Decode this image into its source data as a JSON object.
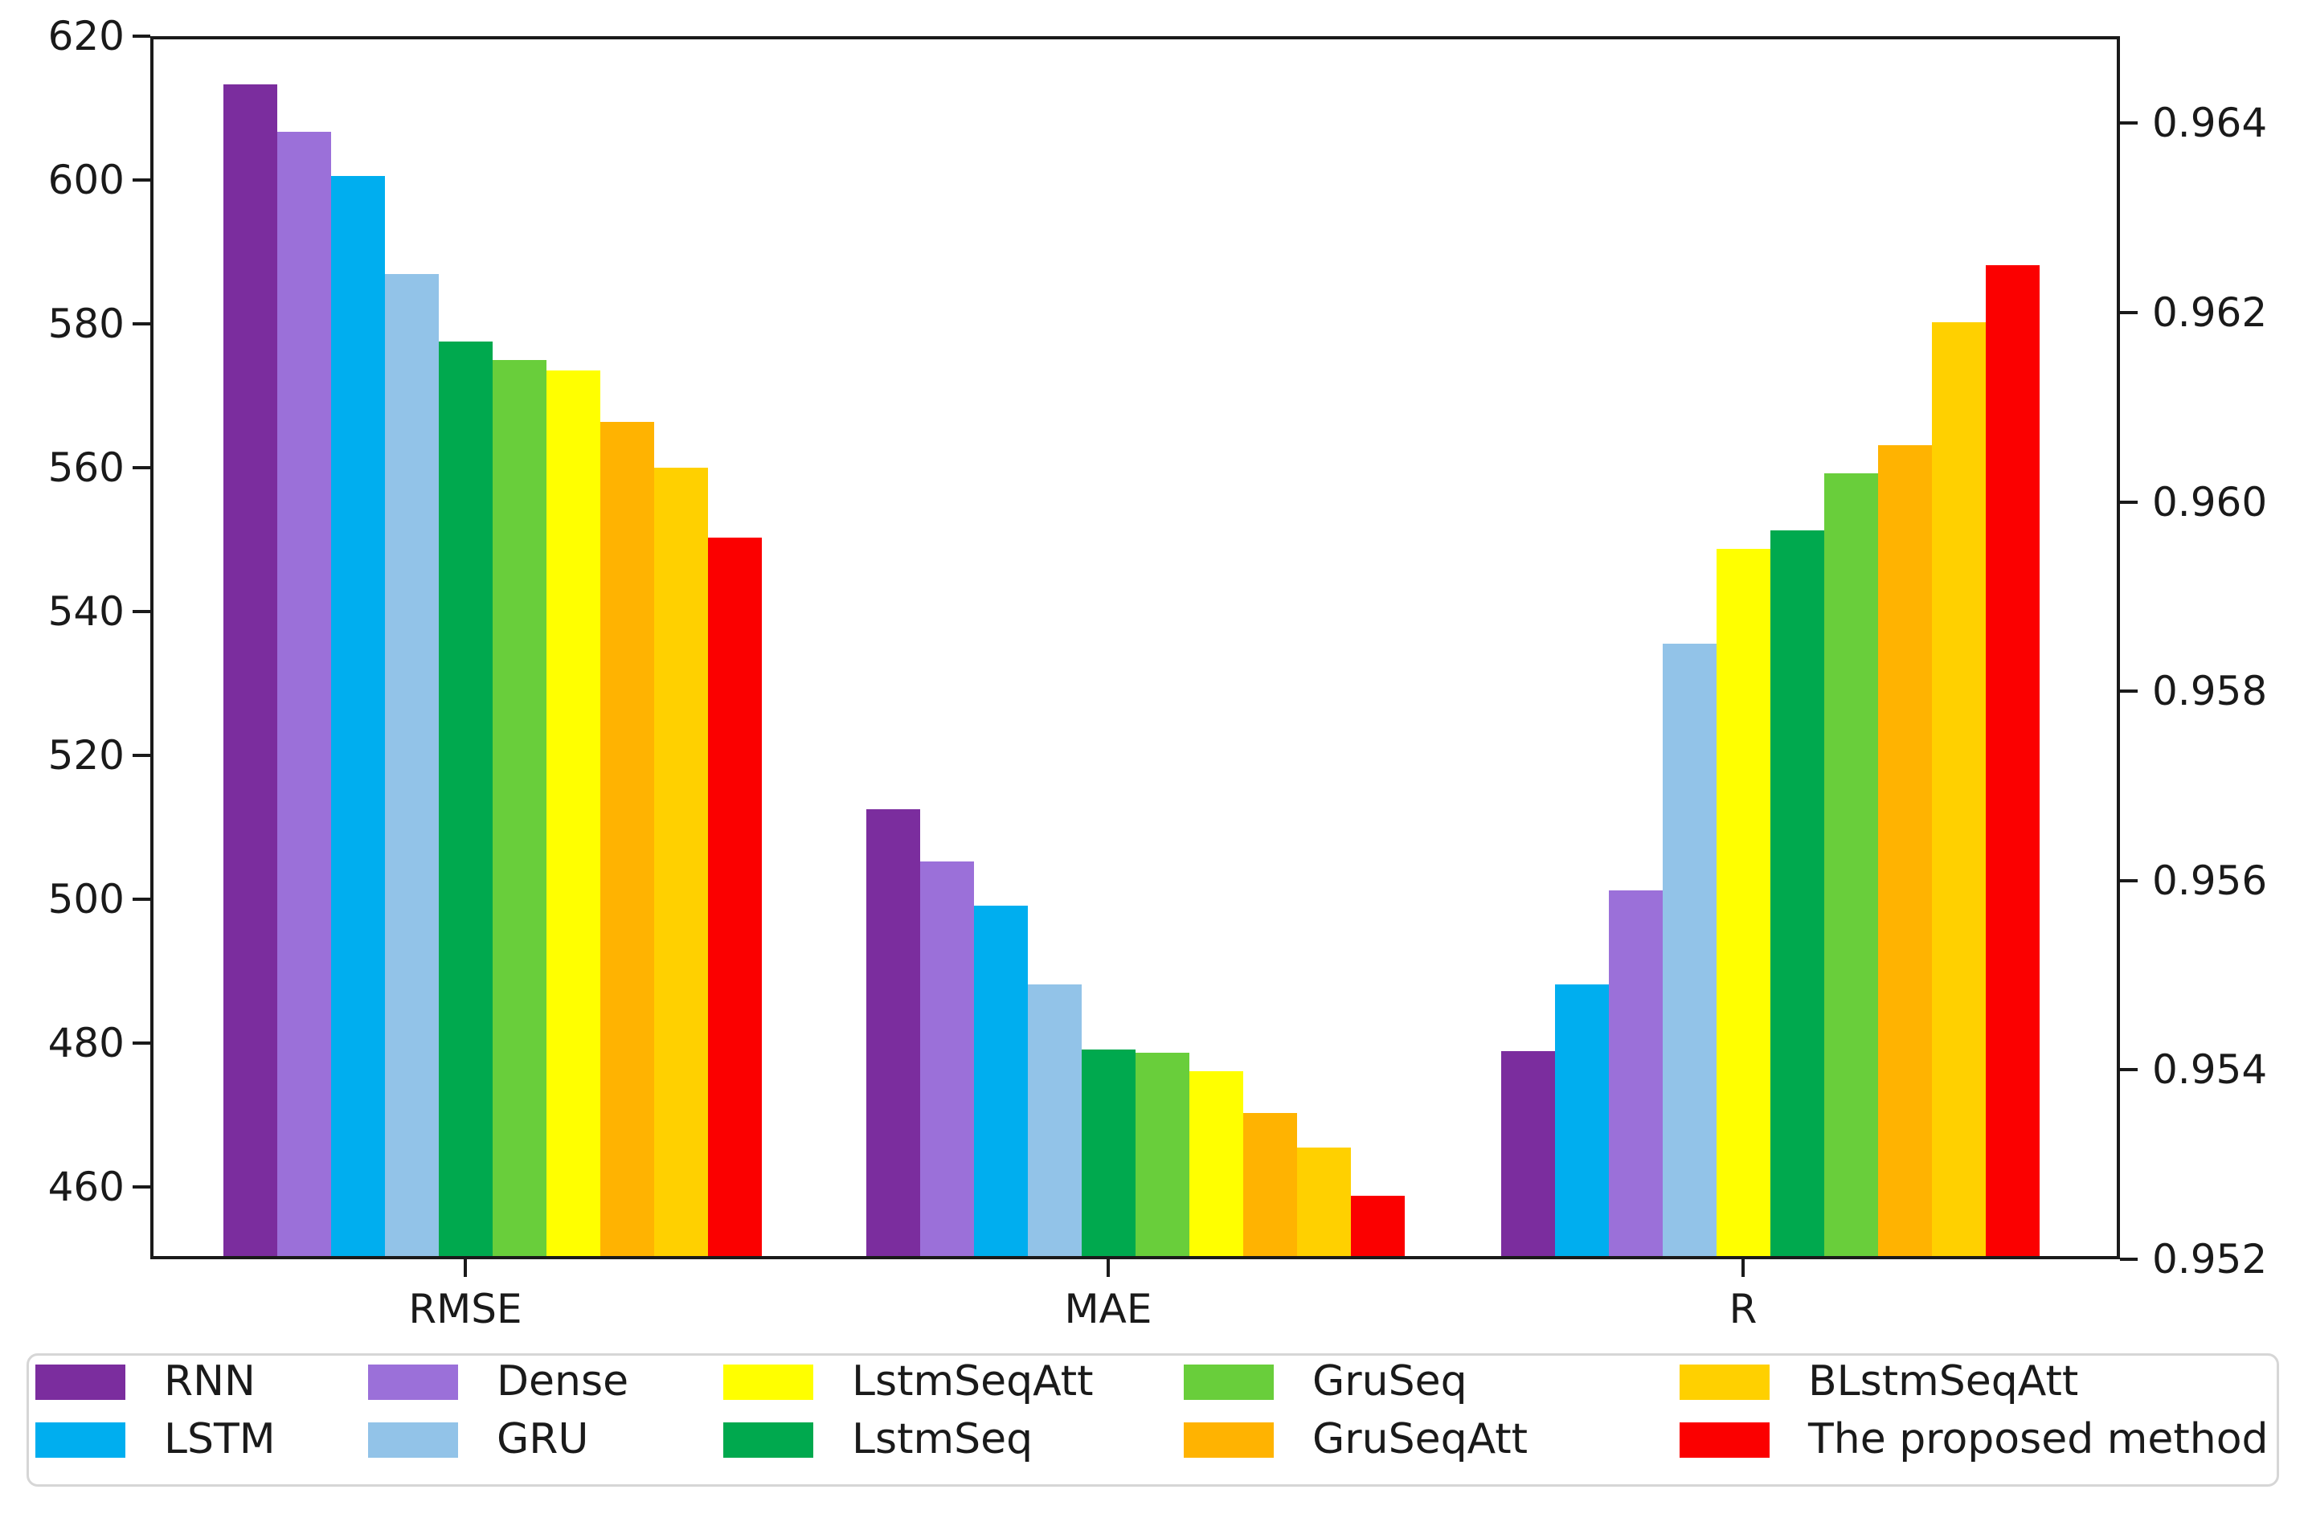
{
  "chart_data": {
    "type": "bar",
    "title": "",
    "xlabel": "",
    "ylabel_left": "",
    "ylabel_right": "",
    "grid": false,
    "legend_position": "bottom",
    "categories": [
      "RMSE",
      "MAE",
      "R"
    ],
    "left_axis": {
      "range": [
        450,
        620
      ],
      "ticks": [
        460,
        480,
        500,
        520,
        540,
        560,
        580,
        600,
        620
      ],
      "applies_to": [
        "RMSE",
        "MAE"
      ]
    },
    "right_axis": {
      "range": [
        0.952,
        0.96492
      ],
      "ticks": [
        0.952,
        0.954,
        0.956,
        0.958,
        0.96,
        0.962,
        0.964
      ],
      "applies_to": [
        "R"
      ]
    },
    "methods": [
      {
        "name": "RNN",
        "color": "#7B2D9E"
      },
      {
        "name": "LSTM",
        "color": "#00AEEF"
      },
      {
        "name": "Dense",
        "color": "#9B70D9"
      },
      {
        "name": "GRU",
        "color": "#92C3E8"
      },
      {
        "name": "LstmSeqAtt",
        "color": "#FFFF00"
      },
      {
        "name": "LstmSeq",
        "color": "#00A94E"
      },
      {
        "name": "GruSeq",
        "color": "#69CE3B"
      },
      {
        "name": "GruSeqAtt",
        "color": "#FFB301"
      },
      {
        "name": "BLstmSeqAtt",
        "color": "#FFD000"
      },
      {
        "name": "The proposed method",
        "color": "#FB0000"
      }
    ],
    "series": [
      {
        "name": "RNN",
        "values": {
          "RMSE": 613.3,
          "MAE": 512.6,
          "R": 0.9542
        }
      },
      {
        "name": "LSTM",
        "values": {
          "RMSE": 600.6,
          "MAE": 499.1,
          "R": 0.9549
        }
      },
      {
        "name": "Dense",
        "values": {
          "RMSE": 606.7,
          "MAE": 505.3,
          "R": 0.9559
        }
      },
      {
        "name": "GRU",
        "values": {
          "RMSE": 586.9,
          "MAE": 488.2,
          "R": 0.9585
        }
      },
      {
        "name": "LstmSeqAtt",
        "values": {
          "RMSE": 573.5,
          "MAE": 476.1,
          "R": 0.9595
        }
      },
      {
        "name": "LstmSeq",
        "values": {
          "RMSE": 577.6,
          "MAE": 479.1,
          "R": 0.9597
        }
      },
      {
        "name": "GruSeq",
        "values": {
          "RMSE": 575.0,
          "MAE": 478.7,
          "R": 0.9603
        }
      },
      {
        "name": "GruSeqAtt",
        "values": {
          "RMSE": 566.4,
          "MAE": 470.3,
          "R": 0.9606
        }
      },
      {
        "name": "BLstmSeqAtt",
        "values": {
          "RMSE": 560.0,
          "MAE": 465.5,
          "R": 0.9619
        }
      },
      {
        "name": "The proposed method",
        "values": {
          "RMSE": 550.3,
          "MAE": 458.8,
          "R": 0.9625
        }
      }
    ],
    "bar_order_per_group": {
      "RMSE": [
        "RNN",
        "Dense",
        "LSTM",
        "GRU",
        "LstmSeq",
        "GruSeq",
        "LstmSeqAtt",
        "GruSeqAtt",
        "BLstmSeqAtt",
        "The proposed method"
      ],
      "MAE": [
        "RNN",
        "Dense",
        "LSTM",
        "GRU",
        "LstmSeq",
        "GruSeq",
        "LstmSeqAtt",
        "GruSeqAtt",
        "BLstmSeqAtt",
        "The proposed method"
      ],
      "R": [
        "RNN",
        "LSTM",
        "Dense",
        "GRU",
        "LstmSeqAtt",
        "LstmSeq",
        "GruSeq",
        "GruSeqAtt",
        "BLstmSeqAtt",
        "The proposed method"
      ]
    },
    "legend_columns": [
      [
        "RNN",
        "LSTM"
      ],
      [
        "Dense",
        "GRU"
      ],
      [
        "LstmSeqAtt",
        "LstmSeq"
      ],
      [
        "GruSeq",
        "GruSeqAtt"
      ],
      [
        "BLstmSeqAtt",
        "The proposed method"
      ]
    ]
  }
}
